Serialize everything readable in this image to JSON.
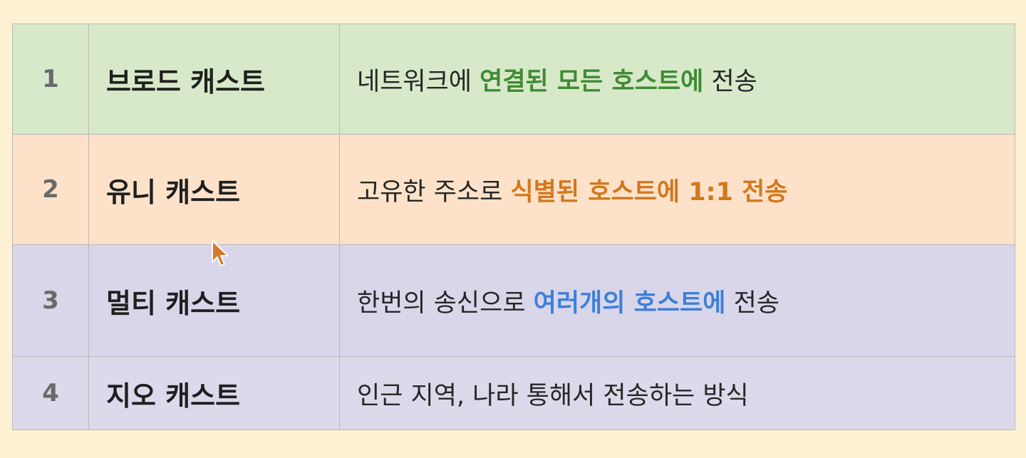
{
  "rows": [
    {
      "num": "1",
      "name": "브로드 캐스트",
      "desc_before": "네트워크에 ",
      "desc_highlight": "연결된 모든 호스트에",
      "desc_after": " 전송",
      "bg_color": "#d7e9c9",
      "highlight_color": "#3f8b33"
    },
    {
      "num": "2",
      "name": "유니 캐스트",
      "desc_before": "고유한 주소로 ",
      "desc_highlight": "식별된 호스트에 1:1 전송",
      "desc_after": "",
      "bg_color": "#fde2c9",
      "highlight_color": "#d2781d"
    },
    {
      "num": "3",
      "name": "멀티 캐스트",
      "desc_before": "한번의 송신으로 ",
      "desc_highlight": "여러개의 호스트에",
      "desc_after": " 전송",
      "bg_color": "#d9d6ea",
      "highlight_color": "#3c7fdc"
    },
    {
      "num": "4",
      "name": "지오 캐스트",
      "desc_before": "인근 지역, 나라 통해서 전송하는 방식",
      "desc_highlight": "",
      "desc_after": "",
      "bg_color": "#dcd9ea",
      "highlight_color": "#262626"
    }
  ],
  "cursor": {
    "icon": "mouse-pointer-icon",
    "color": "#d57a2a"
  }
}
